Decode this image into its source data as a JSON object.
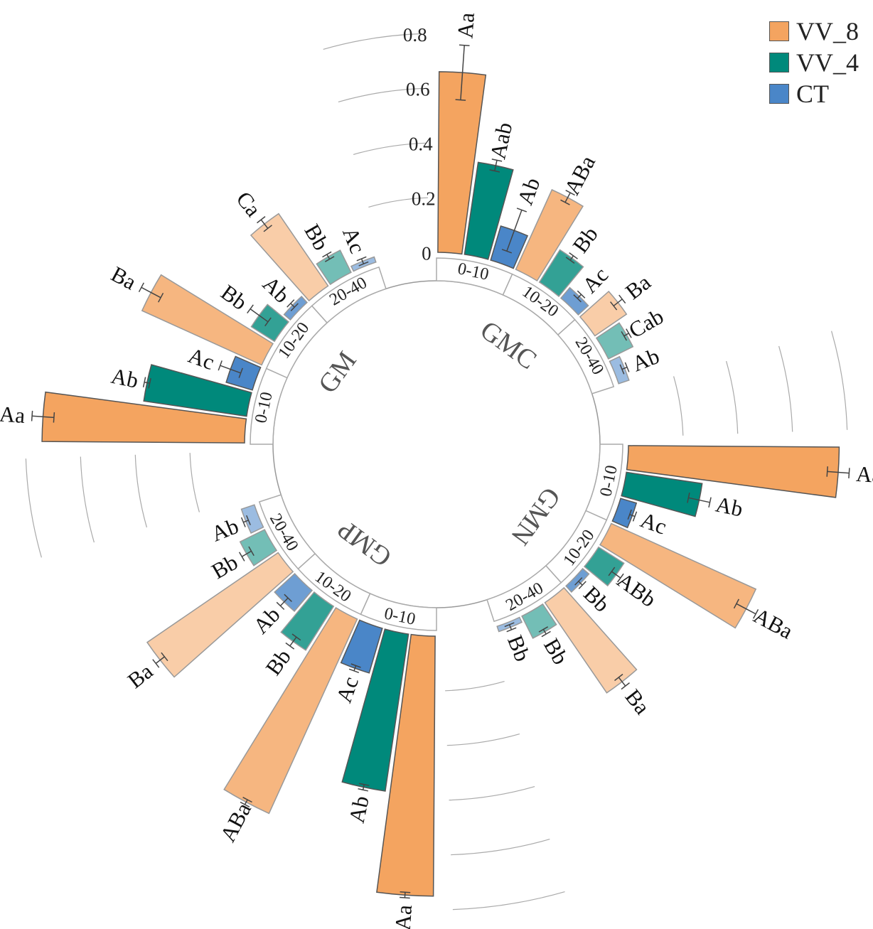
{
  "colors": {
    "VV_8": "#f4a460",
    "VV_4": "#00897b",
    "CT": "#4a86c8",
    "box_stroke": "#aaaaaa",
    "bar_stroke": "#555555"
  },
  "chart_data": {
    "type": "bar",
    "subtype": "circular-grouped",
    "title": "",
    "ylim": [
      0,
      1.0
    ],
    "radial_ticks": [
      "0",
      "0.2",
      "0.4",
      "0.6",
      "0.8",
      "1.0"
    ],
    "legend": [
      "VV_8",
      "VV_4",
      "CT"
    ],
    "legend_placement": "top-right",
    "groups": [
      {
        "name": "GMC",
        "depths": [
          {
            "depth": "0-10",
            "values": [
              0.66,
              0.34,
              0.13
            ],
            "errors": [
              0.1,
              0.02,
              0.08
            ],
            "letters": [
              "Aa",
              "Aab",
              "Ab"
            ]
          },
          {
            "depth": "10-20",
            "values": [
              0.32,
              0.14,
              0.05
            ],
            "errors": [
              0.02,
              0.01,
              0.01
            ],
            "letters": [
              "ABa",
              "Bb",
              "Ac"
            ]
          },
          {
            "depth": "20-40",
            "values": [
              0.14,
              0.1,
              0.04
            ],
            "errors": [
              0.02,
              0.01,
              0.01
            ],
            "letters": [
              "Ba",
              "Cab",
              "Ab"
            ]
          }
        ]
      },
      {
        "name": "GMN",
        "depths": [
          {
            "depth": "0-10",
            "values": [
              0.77,
              0.28,
              0.06
            ],
            "errors": [
              0.04,
              0.04,
              0.01
            ],
            "letters": [
              "Aa",
              "Ab",
              "Ac"
            ]
          },
          {
            "depth": "10-20",
            "values": [
              0.58,
              0.11,
              0.03
            ],
            "errors": [
              0.04,
              0.02,
              0.01
            ],
            "letters": [
              "ABa",
              "ABb",
              "Bb"
            ]
          },
          {
            "depth": "20-40",
            "values": [
              0.4,
              0.09,
              0.02
            ],
            "errors": [
              0.02,
              0.01,
              0.01
            ],
            "letters": [
              "Ba",
              "Bb",
              "Bb"
            ]
          }
        ]
      },
      {
        "name": "GMP",
        "depths": [
          {
            "depth": "0-10",
            "values": [
              0.95,
              0.58,
              0.17
            ],
            "errors": [
              0.01,
              0.01,
              0.01
            ],
            "letters": [
              "Aa",
              "Ab",
              "Ac"
            ]
          },
          {
            "depth": "10-20",
            "values": [
              0.78,
              0.19,
              0.1
            ],
            "errors": [
              0.01,
              0.02,
              0.02
            ],
            "letters": [
              "ABa",
              "Bb",
              "Ab"
            ]
          },
          {
            "depth": "20-40",
            "values": [
              0.58,
              0.1,
              0.05
            ],
            "errors": [
              0.02,
              0.02,
              0.01
            ],
            "letters": [
              "Ba",
              "Bb",
              "Ab"
            ]
          }
        ]
      },
      {
        "name": "GM",
        "depths": [
          {
            "depth": "0-10",
            "values": [
              0.74,
              0.38,
              0.1
            ],
            "errors": [
              0.04,
              0.01,
              0.04
            ],
            "letters": [
              "Aa",
              "Ab",
              "Ac"
            ]
          },
          {
            "depth": "10-20",
            "values": [
              0.48,
              0.1,
              0.03
            ],
            "errors": [
              0.04,
              0.04,
              0.01
            ],
            "letters": [
              "Ba",
              "Bb",
              "Ab"
            ]
          },
          {
            "depth": "20-40",
            "values": [
              0.32,
              0.09,
              0.02
            ],
            "errors": [
              0.02,
              0.01,
              0.01
            ],
            "letters": [
              "Ca",
              "Bb",
              "Ac"
            ]
          }
        ]
      }
    ]
  }
}
